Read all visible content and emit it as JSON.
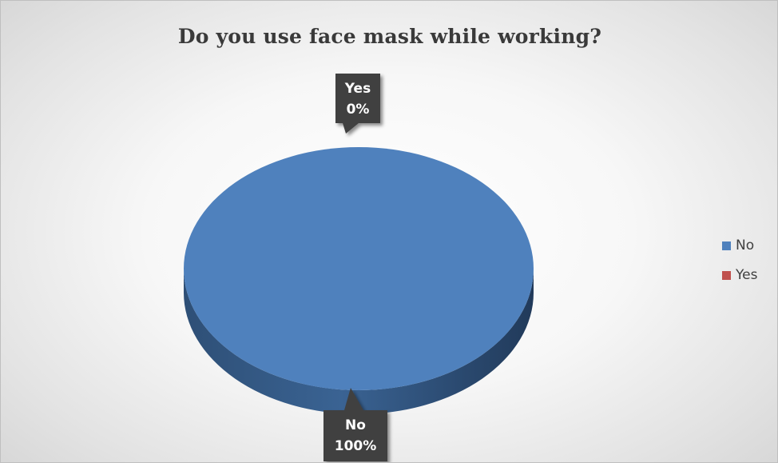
{
  "chart_data": {
    "type": "pie",
    "title": "Do you use face mask while working?",
    "categories": [
      "No",
      "Yes"
    ],
    "values": [
      100,
      0
    ],
    "data_labels": [
      {
        "category": "No",
        "percent": "100%"
      },
      {
        "category": "Yes",
        "percent": "0%"
      }
    ],
    "colors": [
      "#4f81bd",
      "#c0504d"
    ],
    "legend_position": "right",
    "style": "3d"
  },
  "legend": {
    "items": [
      {
        "label": "No",
        "color": "#4f81bd"
      },
      {
        "label": "Yes",
        "color": "#c0504d"
      }
    ]
  }
}
